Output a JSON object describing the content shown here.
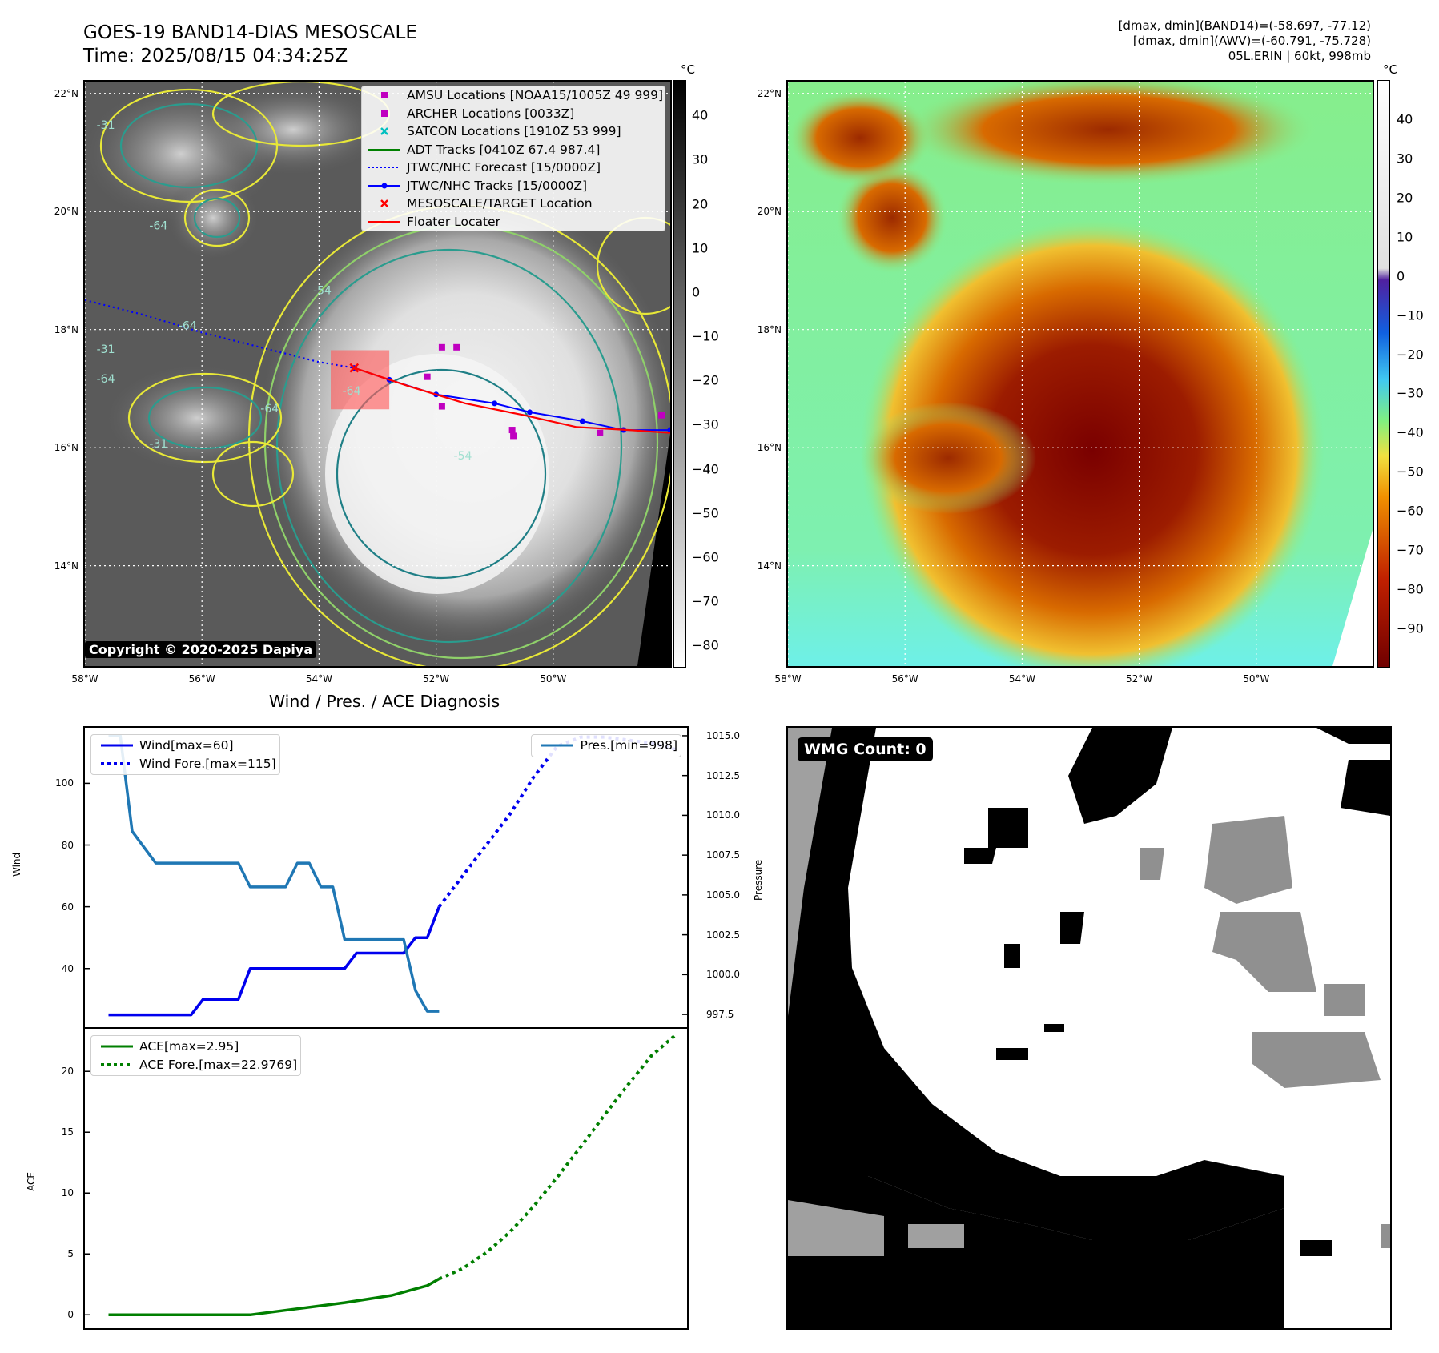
{
  "header": {
    "title_line1": "GOES-19 BAND14-DIAS MESOSCALE",
    "title_line2": "Time: 2025/08/15 04:34:25Z",
    "info_line1": "[dmax, dmin](BAND14)=(-58.697, -77.12)",
    "info_line2": "[dmax, dmin](AWV)=(-60.791, -75.728)",
    "info_line3": "05L.ERIN | 60kt, 998mb"
  },
  "map": {
    "lat_ticks": [
      "22°N",
      "20°N",
      "18°N",
      "16°N",
      "14°N"
    ],
    "lon_ticks": [
      "58°W",
      "56°W",
      "54°W",
      "52°W",
      "50°W"
    ],
    "lon_range": [
      -58,
      -48
    ],
    "lat_range": [
      12.3,
      22.2
    ],
    "copyright": "Copyright © 2020-2025 Dapiya",
    "contour_labels": [
      "-31",
      "-64",
      "-54",
      "-64",
      "-31",
      "-64",
      "-64",
      "-31",
      "-54",
      "-64"
    ],
    "legend": [
      {
        "label": "AMSU Locations [NOAA15/1005Z 49 999]",
        "marker": "square",
        "color": "#c000c0"
      },
      {
        "label": "ARCHER Locations [0033Z]",
        "marker": "square",
        "color": "#c000c0"
      },
      {
        "label": "SATCON Locations [1910Z 53 999]",
        "marker": "x",
        "color": "#00c0c0"
      },
      {
        "label": "ADT Tracks [0410Z 67.4 987.4]",
        "marker": "line",
        "color": "#008000"
      },
      {
        "label": "JTWC/NHC Forecast [15/0000Z]",
        "marker": "dotted",
        "color": "#0000ff"
      },
      {
        "label": "JTWC/NHC Tracks [15/0000Z]",
        "marker": "line-dot",
        "color": "#0000ff"
      },
      {
        "label": "MESOSCALE/TARGET Location",
        "marker": "x",
        "color": "#ff0000"
      },
      {
        "label": "Floater Locater",
        "marker": "line",
        "color": "#ff0000"
      }
    ],
    "forecast_track": [
      [
        -58,
        18.5
      ],
      [
        -57,
        18.25
      ],
      [
        -56,
        17.95
      ],
      [
        -55,
        17.7
      ],
      [
        -54,
        17.45
      ],
      [
        -53.4,
        17.35
      ]
    ],
    "nhc_track": [
      [
        -53.4,
        17.35
      ],
      [
        -52.8,
        17.15
      ],
      [
        -52,
        16.9
      ],
      [
        -51,
        16.75
      ],
      [
        -50.4,
        16.6
      ],
      [
        -49.5,
        16.45
      ],
      [
        -48.8,
        16.3
      ],
      [
        -48,
        16.3
      ]
    ],
    "floater_track": [
      [
        -53.4,
        17.35
      ],
      [
        -52.5,
        17.05
      ],
      [
        -51.5,
        16.75
      ],
      [
        -50.5,
        16.55
      ],
      [
        -49.6,
        16.35
      ],
      [
        -48.7,
        16.3
      ],
      [
        -48,
        16.25
      ]
    ],
    "amsu_points": [
      [
        -51.9,
        17.7
      ],
      [
        -51.65,
        17.7
      ],
      [
        -52.15,
        17.2
      ],
      [
        -51.9,
        16.7
      ],
      [
        -50.7,
        16.3
      ],
      [
        -50.68,
        16.2
      ],
      [
        -49.2,
        16.25
      ],
      [
        -48.15,
        16.55
      ]
    ],
    "target": [
      -53.4,
      17.35
    ],
    "floater_box": {
      "lon_min": -53.8,
      "lon_max": -52.8,
      "lat_min": 16.65,
      "lat_max": 17.65
    },
    "colorbar_unit": "°C",
    "colorbar_ticks": [
      "40",
      "30",
      "20",
      "10",
      "0",
      "−10",
      "−20",
      "−30",
      "−40",
      "−50",
      "−60",
      "−70",
      "−80"
    ],
    "colorbar_tick_values": [
      40,
      30,
      20,
      10,
      0,
      -10,
      -20,
      -30,
      -40,
      -50,
      -60,
      -70,
      -80
    ],
    "colorbar_range": [
      -85,
      48
    ]
  },
  "map2": {
    "lat_ticks": [
      "22°N",
      "20°N",
      "18°N",
      "16°N",
      "14°N"
    ],
    "lon_ticks": [
      "58°W",
      "56°W",
      "54°W",
      "52°W",
      "50°W"
    ],
    "colorbar_unit": "°C",
    "colorbar_ticks": [
      "40",
      "30",
      "20",
      "10",
      "0",
      "−10",
      "−20",
      "−30",
      "−40",
      "−50",
      "−60",
      "−70",
      "−80",
      "−90"
    ],
    "colorbar_tick_values": [
      40,
      30,
      20,
      10,
      0,
      -10,
      -20,
      -30,
      -40,
      -50,
      -60,
      -70,
      -80,
      -90
    ],
    "colorbar_range": [
      -100,
      50
    ]
  },
  "diagnosis_title": "Wind / Pres. / ACE Diagnosis",
  "wmg": {
    "label": "WMG Count: 0"
  },
  "chart_data": [
    {
      "type": "line",
      "title": "Wind / Pres. / ACE Diagnosis",
      "ylabel": "Wind",
      "y2label": "Pressure",
      "ylim": [
        21,
        118
      ],
      "y2lim": [
        996.7,
        1015.5
      ],
      "yticks": [
        40,
        60,
        80,
        100
      ],
      "y2ticks": [
        "1015.0",
        "1012.5",
        "1010.0",
        "1007.5",
        "1005.0",
        "1002.5",
        "1000.0",
        "997.5"
      ],
      "y2tick_values": [
        1015.0,
        1012.5,
        1010.0,
        1007.5,
        1005.0,
        1002.5,
        1000.0,
        997.5
      ],
      "xlim": [
        -2,
        49
      ],
      "series": [
        {
          "name": "Wind[max=60]",
          "axis": "left",
          "style": "solid",
          "color": "#0000ee",
          "x": [
            0,
            1,
            2,
            3,
            4,
            5,
            6,
            7,
            8,
            9,
            10,
            11,
            12,
            13,
            14,
            15,
            16,
            17,
            18,
            19,
            20,
            21,
            22,
            23,
            24,
            25,
            26,
            27,
            28
          ],
          "y": [
            25,
            25,
            25,
            25,
            25,
            25,
            25,
            25,
            30,
            30,
            30,
            30,
            40,
            40,
            40,
            40,
            40,
            40,
            40,
            40,
            40,
            45,
            45,
            45,
            45,
            45,
            50,
            50,
            60
          ]
        },
        {
          "name": "Wind Fore.[max=115]",
          "axis": "left",
          "style": "dotted",
          "color": "#0000ee",
          "x": [
            28,
            30,
            32,
            34,
            36,
            38,
            40,
            42,
            44,
            46,
            48
          ],
          "y": [
            60,
            70,
            80,
            90,
            102,
            112,
            115,
            115,
            114,
            113,
            111
          ]
        },
        {
          "name": "Pres.[min=998]",
          "axis": "right",
          "style": "solid",
          "color": "#1f77b4",
          "x": [
            0,
            1,
            2,
            3,
            4,
            5,
            6,
            7,
            8,
            9,
            10,
            11,
            12,
            13,
            14,
            15,
            16,
            17,
            18,
            19,
            20,
            21,
            22,
            23,
            24,
            25,
            26,
            27,
            28
          ],
          "y": [
            1015,
            1015,
            1009,
            1008,
            1007,
            1007,
            1007,
            1007,
            1007,
            1007,
            1007,
            1007,
            1005.5,
            1005.5,
            1005.5,
            1005.5,
            1007,
            1007,
            1005.5,
            1005.5,
            1002.2,
            1002.2,
            1002.2,
            1002.2,
            1002.2,
            1002.2,
            999,
            997.7,
            997.7
          ]
        }
      ]
    },
    {
      "type": "line",
      "ylabel": "ACE",
      "ylim": [
        -1.1,
        23.5
      ],
      "yticks": [
        0,
        5,
        10,
        15,
        20
      ],
      "xlim": [
        -2,
        49
      ],
      "series": [
        {
          "name": "ACE[max=2.95]",
          "style": "solid",
          "color": "#007f00",
          "x": [
            0,
            4,
            8,
            12,
            16,
            20,
            24,
            27,
            28
          ],
          "y": [
            0,
            0,
            0,
            0,
            0.5,
            1.0,
            1.6,
            2.4,
            2.95
          ]
        },
        {
          "name": "ACE Fore.[max=22.9769]",
          "style": "dotted",
          "color": "#007f00",
          "x": [
            28,
            30,
            32,
            34,
            36,
            38,
            40,
            42,
            44,
            46,
            48
          ],
          "y": [
            2.95,
            3.8,
            5.1,
            6.8,
            8.9,
            11.3,
            13.8,
            16.4,
            18.9,
            21.3,
            22.9769
          ]
        }
      ]
    }
  ]
}
